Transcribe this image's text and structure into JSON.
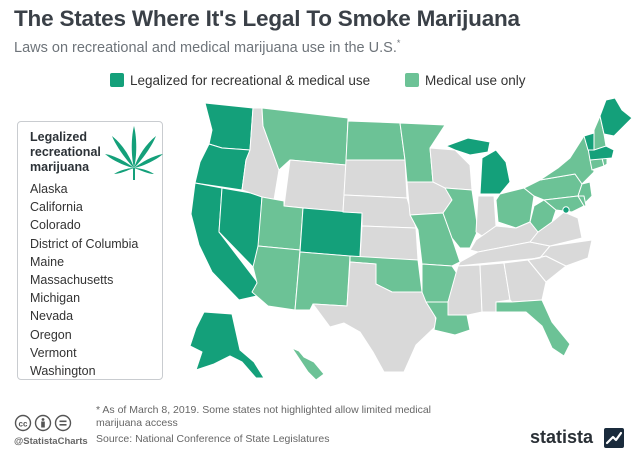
{
  "header": {
    "title": "The States Where It's Legal To Smoke Marijuana",
    "subtitle": "Laws on recreational and medical marijuana use in the U.S.",
    "subtitle_mark": "*"
  },
  "legend": {
    "recreational_label": "Legalized for recreational & medical use",
    "medical_label": "Medical use only"
  },
  "colors": {
    "recreational": "#14a07a",
    "medical": "#6cc296",
    "none": "#d9d9d9",
    "border": "#ffffff"
  },
  "panel": {
    "title": "Legalized recreational marijuana",
    "states": [
      "Alaska",
      "California",
      "Colorado",
      "District of Columbia",
      "Maine",
      "Massachusetts",
      "Michigan",
      "Nevada",
      "Oregon",
      "Vermont",
      "Washington"
    ]
  },
  "footer": {
    "footnote": "* As of March 8, 2019. Some states not highlighted allow limited medical marijuana access",
    "source": "Source: National Conference of State Legislatures",
    "handle": "@StatistaCharts",
    "brand": "statista"
  },
  "icons": [
    "cannabis-leaf-icon",
    "cc-icon",
    "attribution-icon",
    "equals-icon",
    "statista-logo-icon"
  ]
}
